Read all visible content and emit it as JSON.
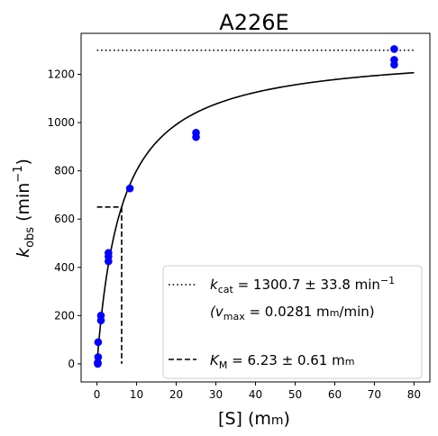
{
  "chart_data": {
    "type": "scatter",
    "title": "A226E",
    "xlabel": {
      "main": "[S] (m",
      "unit_small": "m",
      "close": ")"
    },
    "ylabel": {
      "k": "k",
      "sub": "obs",
      "unit": " (min",
      "sup": "−1",
      "close": ")"
    },
    "xlim": [
      -4,
      84
    ],
    "ylim": [
      -75,
      1370
    ],
    "xticks": [
      0,
      10,
      20,
      30,
      40,
      50,
      60,
      70,
      80
    ],
    "yticks": [
      0,
      200,
      400,
      600,
      800,
      1000,
      1200
    ],
    "marker_color": "#0000ff",
    "points": {
      "x": [
        0.2,
        0.2,
        0.3,
        0.3,
        1.0,
        1.0,
        2.9,
        2.9,
        2.9,
        8.3,
        25.0,
        25.0,
        75.0,
        75.0,
        75.0
      ],
      "y": [
        0,
        5,
        28,
        90,
        180,
        200,
        425,
        445,
        460,
        727,
        940,
        958,
        1240,
        1260,
        1305
      ]
    },
    "fit": {
      "model": "michaelis-menten",
      "kcat": 1300.7,
      "km": 6.23,
      "x_range": [
        0,
        80
      ],
      "color": "#000000"
    },
    "kcat_line": {
      "y": 1300,
      "x_range": [
        0,
        80
      ],
      "style": "dotted"
    },
    "km_line": {
      "x": 6.23,
      "half_y": 650,
      "x_start": 0,
      "style": "dashed"
    },
    "legend": {
      "position": "lower-right",
      "entries": [
        {
          "style": "dotted",
          "prefix": "k",
          "sub": "cat",
          "text": " = 1300.7 ± 33.8 min",
          "sup": "−1"
        },
        {
          "style": "none",
          "prefix": "(v",
          "sub": "max",
          "text": " = 0.0281 m",
          "unit_small": "m",
          "tail": "/min)"
        },
        {
          "style": "dashed",
          "prefix": "K",
          "sub": "M",
          "text": " = 6.23 ± 0.61 m",
          "unit_small": "m"
        }
      ]
    }
  }
}
